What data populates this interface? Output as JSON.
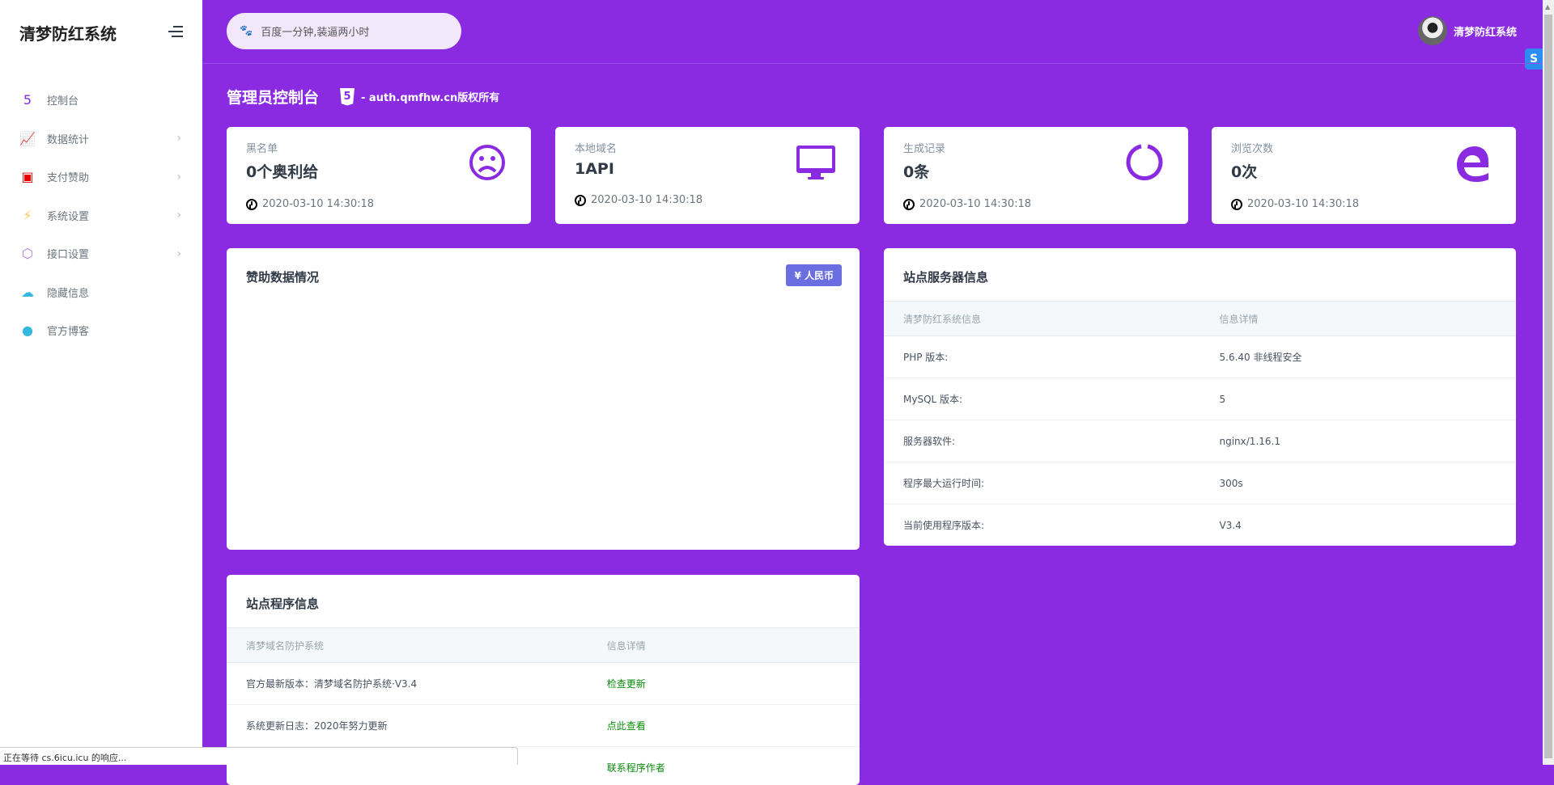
{
  "app": {
    "brand": "清梦防红系统"
  },
  "sidebar": {
    "items": [
      {
        "label": "控制台",
        "icon": "html5-icon",
        "color": "#8a2be2",
        "chevron": false
      },
      {
        "label": "数据统计",
        "icon": "chart-line-icon",
        "color": "#10c469",
        "chevron": true
      },
      {
        "label": "支付赞助",
        "icon": "money-icon",
        "color": "#e00000",
        "chevron": true
      },
      {
        "label": "系统设置",
        "icon": "bolt-icon",
        "color": "#f9c851",
        "chevron": true
      },
      {
        "label": "接口设置",
        "icon": "hexagon-icon",
        "color": "#b07cd6",
        "chevron": true
      },
      {
        "label": "隐藏信息",
        "icon": "cloud-icon",
        "color": "#35b8e0",
        "chevron": false
      },
      {
        "label": "官方博客",
        "icon": "github-icon",
        "color": "#35b8e0",
        "chevron": false
      }
    ]
  },
  "header": {
    "search_placeholder": "百度一分钟,装逼两小时",
    "user_name": "清梦防红系统",
    "side_badge": "S"
  },
  "page": {
    "title": "管理员控制台",
    "badge": "5",
    "copyright": "- auth.qmfhw.cn版权所有"
  },
  "stats": [
    {
      "label": "黑名单",
      "value": "0个奥利给",
      "time": "2020-03-10 14:30:18",
      "icon": "sad-face-icon"
    },
    {
      "label": "本地域名",
      "value": "1API",
      "time": "2020-03-10 14:30:18",
      "icon": "monitor-icon"
    },
    {
      "label": "生成记录",
      "value": "0条",
      "time": "2020-03-10 14:30:18",
      "icon": "power-ring-icon"
    },
    {
      "label": "浏览次数",
      "value": "0次",
      "time": "2020-03-10 14:30:18",
      "icon": "edge-icon"
    }
  ],
  "sponsor": {
    "title": "赞助数据情况",
    "currency_button": "¥ 人民币"
  },
  "server": {
    "title": "站点服务器信息",
    "headers": [
      "清梦防红系统信息",
      "信息详情"
    ],
    "rows": [
      [
        "PHP 版本:",
        "5.6.40 非线程安全"
      ],
      [
        "MySQL 版本:",
        "5"
      ],
      [
        "服务器软件:",
        "nginx/1.16.1"
      ],
      [
        "程序最大运行时间:",
        "300s"
      ],
      [
        "当前使用程序版本:",
        "V3.4"
      ]
    ]
  },
  "program": {
    "title": "站点程序信息",
    "headers": [
      "清梦域名防护系统",
      "信息详情"
    ],
    "rows": [
      [
        "官方最新版本：清梦域名防护系统·V3.4",
        "检查更新"
      ],
      [
        "系统更新日志：2020年努力更新",
        "点此查看"
      ],
      [
        "",
        "联系程序作者"
      ]
    ]
  },
  "statusbar": {
    "text": "正在等待 cs.6icu.icu 的响应..."
  }
}
